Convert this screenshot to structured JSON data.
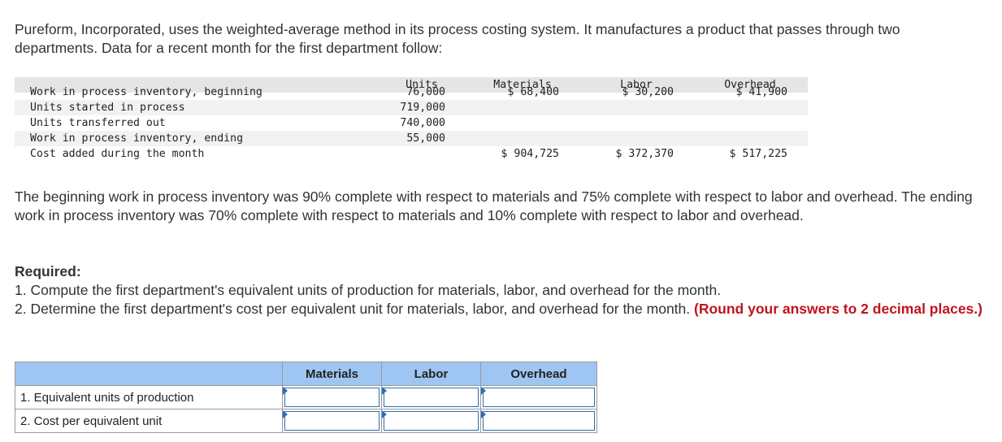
{
  "intro": "Pureform, Incorporated, uses the weighted-average method in its process costing system. It manufactures a product that passes through two departments. Data for a recent month for the first department follow:",
  "data_table": {
    "headers": {
      "units": "Units",
      "materials": "Materials",
      "labor": "Labor",
      "overhead": "Overhead"
    },
    "rows": [
      {
        "label": "Work in process inventory, beginning",
        "units": "76,000",
        "materials": "$ 68,400",
        "labor": "$ 30,200",
        "overhead": "$ 41,900"
      },
      {
        "label": "Units started in process",
        "units": "719,000",
        "materials": "",
        "labor": "",
        "overhead": ""
      },
      {
        "label": "Units transferred out",
        "units": "740,000",
        "materials": "",
        "labor": "",
        "overhead": ""
      },
      {
        "label": "Work in process inventory, ending",
        "units": "55,000",
        "materials": "",
        "labor": "",
        "overhead": ""
      },
      {
        "label": "Cost added during the month",
        "units": "",
        "materials": "$ 904,725",
        "labor": "$ 372,370",
        "overhead": "$ 517,225"
      }
    ]
  },
  "para2": "The beginning work in process inventory was 90% complete with respect to materials and 75% complete with respect to labor and overhead. The ending work in process inventory was 70% complete with respect to materials and 10% complete with respect to labor and overhead.",
  "required": {
    "title": "Required:",
    "item1": "1. Compute the first department's equivalent units of production for materials, labor, and overhead for the month.",
    "item2": "2. Determine the first department's cost per equivalent unit for materials, labor, and overhead for the month.",
    "item2_note": "(Round your answers to 2 decimal places.)"
  },
  "answer_grid": {
    "columns": [
      "Materials",
      "Labor",
      "Overhead"
    ],
    "rows": [
      {
        "label": "1. Equivalent units of production",
        "values": [
          "",
          "",
          ""
        ]
      },
      {
        "label": "2. Cost per equivalent unit",
        "values": [
          "",
          "",
          ""
        ]
      }
    ]
  },
  "colors": {
    "accent_red": "#c0141c",
    "grid_header_blue": "#9fc5f2",
    "input_flag_blue": "#2a6ebb"
  }
}
